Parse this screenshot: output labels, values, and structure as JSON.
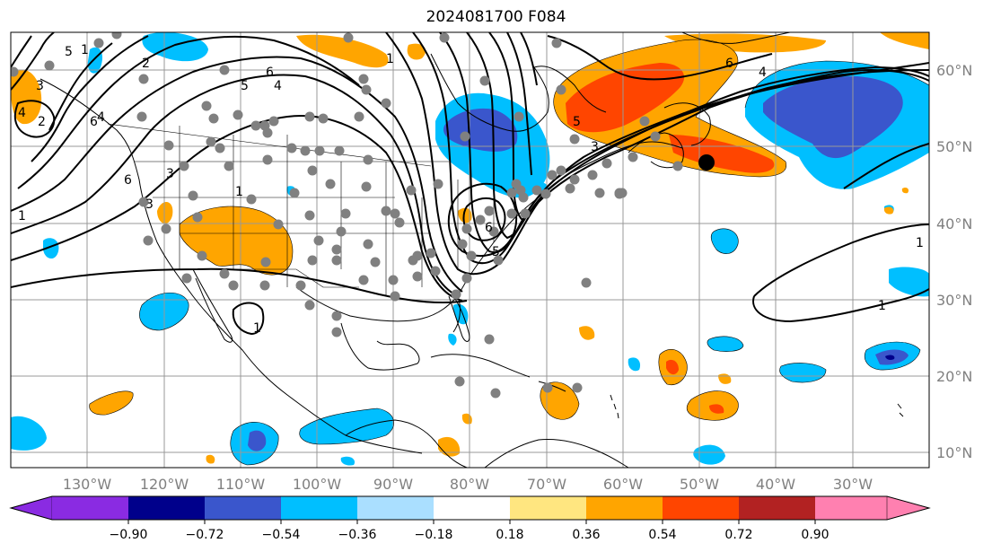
{
  "title": "2024081700 F084",
  "lat_labels": [
    "60°N",
    "50°N",
    "40°N",
    "30°N",
    "20°N",
    "10°N"
  ],
  "lon_labels": [
    "130°W",
    "120°W",
    "110°W",
    "100°W",
    "90°W",
    "80°W",
    "70°W",
    "60°W",
    "50°W",
    "40°W",
    "30°W"
  ],
  "colorbar": {
    "ticks": [
      "−0.90",
      "−0.72",
      "−0.54",
      "−0.36",
      "−0.18",
      "0.18",
      "0.36",
      "0.54",
      "0.72",
      "0.90"
    ],
    "colors": [
      "#8a2be2",
      "#00008b",
      "#3a56cc",
      "#00bfff",
      "#aadfff",
      "#ffffff",
      "#ffe680",
      "#ffa500",
      "#ff4500",
      "#b22222",
      "#ff80b0"
    ]
  },
  "contour_labels": [
    "1",
    "2",
    "3",
    "4",
    "5",
    "6",
    "1",
    "2",
    "3",
    "5",
    "6",
    "1",
    "4",
    "5",
    "6",
    "6",
    "1",
    "1",
    "3",
    "5",
    "4",
    "6",
    "4",
    "3",
    "1",
    "1"
  ],
  "colors": {
    "grid": "#999999",
    "coast": "#000000",
    "station": "#808080",
    "marker": "#000000"
  }
}
